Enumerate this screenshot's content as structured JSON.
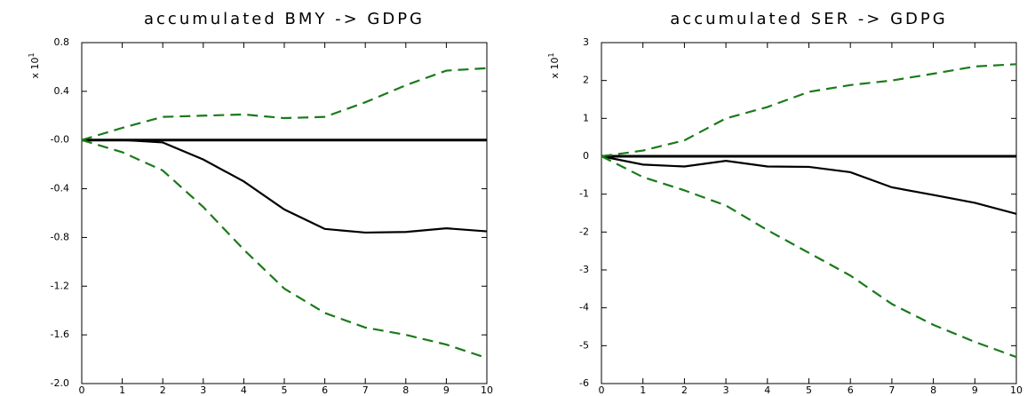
{
  "chart_data": [
    {
      "type": "line",
      "title": "accumulated BMY -> GDPG",
      "scale_label": "x 10",
      "scale_exponent": "1",
      "x": [
        0,
        1,
        2,
        3,
        4,
        5,
        6,
        7,
        8,
        9,
        10
      ],
      "xlim": [
        0,
        10
      ],
      "xticks": [
        0,
        1,
        2,
        3,
        4,
        5,
        6,
        7,
        8,
        9,
        10
      ],
      "ylim": [
        -2.0,
        0.8
      ],
      "yticks": [
        0.8,
        0.4,
        {
          "value": 0,
          "label": "-0.0"
        },
        -0.4,
        -0.8,
        -1.2,
        -1.6,
        {
          "value": -2,
          "label": "-2.0"
        }
      ],
      "hline": 0,
      "series": [
        {
          "color": "#000000",
          "dash": "solid",
          "values": [
            0,
            0,
            -0.02,
            -0.16,
            -0.34,
            -0.57,
            -0.73,
            -0.76,
            -0.755,
            -0.725,
            -0.75
          ]
        },
        {
          "color": "#1a7a1a",
          "dash": "dashed",
          "values": [
            0,
            0.1,
            0.19,
            0.2,
            0.21,
            0.18,
            0.19,
            0.31,
            0.45,
            0.57,
            0.59
          ]
        },
        {
          "color": "#1a7a1a",
          "dash": "dashed",
          "values": [
            0,
            -0.1,
            -0.25,
            -0.55,
            -0.9,
            -1.22,
            -1.42,
            -1.54,
            -1.6,
            -1.68,
            -1.79
          ]
        }
      ]
    },
    {
      "type": "line",
      "title": "accumulated SER -> GDPG",
      "scale_label": "x 10",
      "scale_exponent": "1",
      "x": [
        0,
        1,
        2,
        3,
        4,
        5,
        6,
        7,
        8,
        9,
        10
      ],
      "xlim": [
        0,
        10
      ],
      "xticks": [
        0,
        1,
        2,
        3,
        4,
        5,
        6,
        7,
        8,
        9,
        10
      ],
      "ylim": [
        -6,
        3
      ],
      "yticks": [
        3,
        2,
        1,
        0,
        -1,
        -2,
        -3,
        -4,
        -5,
        -6
      ],
      "hline": 0,
      "series": [
        {
          "color": "#000000",
          "dash": "solid",
          "values": [
            0,
            -0.22,
            -0.27,
            -0.12,
            -0.27,
            -0.28,
            -0.42,
            -0.82,
            -1.02,
            -1.23,
            -1.52
          ]
        },
        {
          "color": "#1a7a1a",
          "dash": "dashed",
          "values": [
            0,
            0.15,
            0.42,
            1.0,
            1.3,
            1.7,
            1.88,
            2.0,
            2.18,
            2.37,
            2.43
          ]
        },
        {
          "color": "#1a7a1a",
          "dash": "dashed",
          "values": [
            0,
            -0.55,
            -0.9,
            -1.3,
            -1.95,
            -2.55,
            -3.15,
            -3.9,
            -4.45,
            -4.9,
            -5.3
          ]
        }
      ]
    }
  ]
}
